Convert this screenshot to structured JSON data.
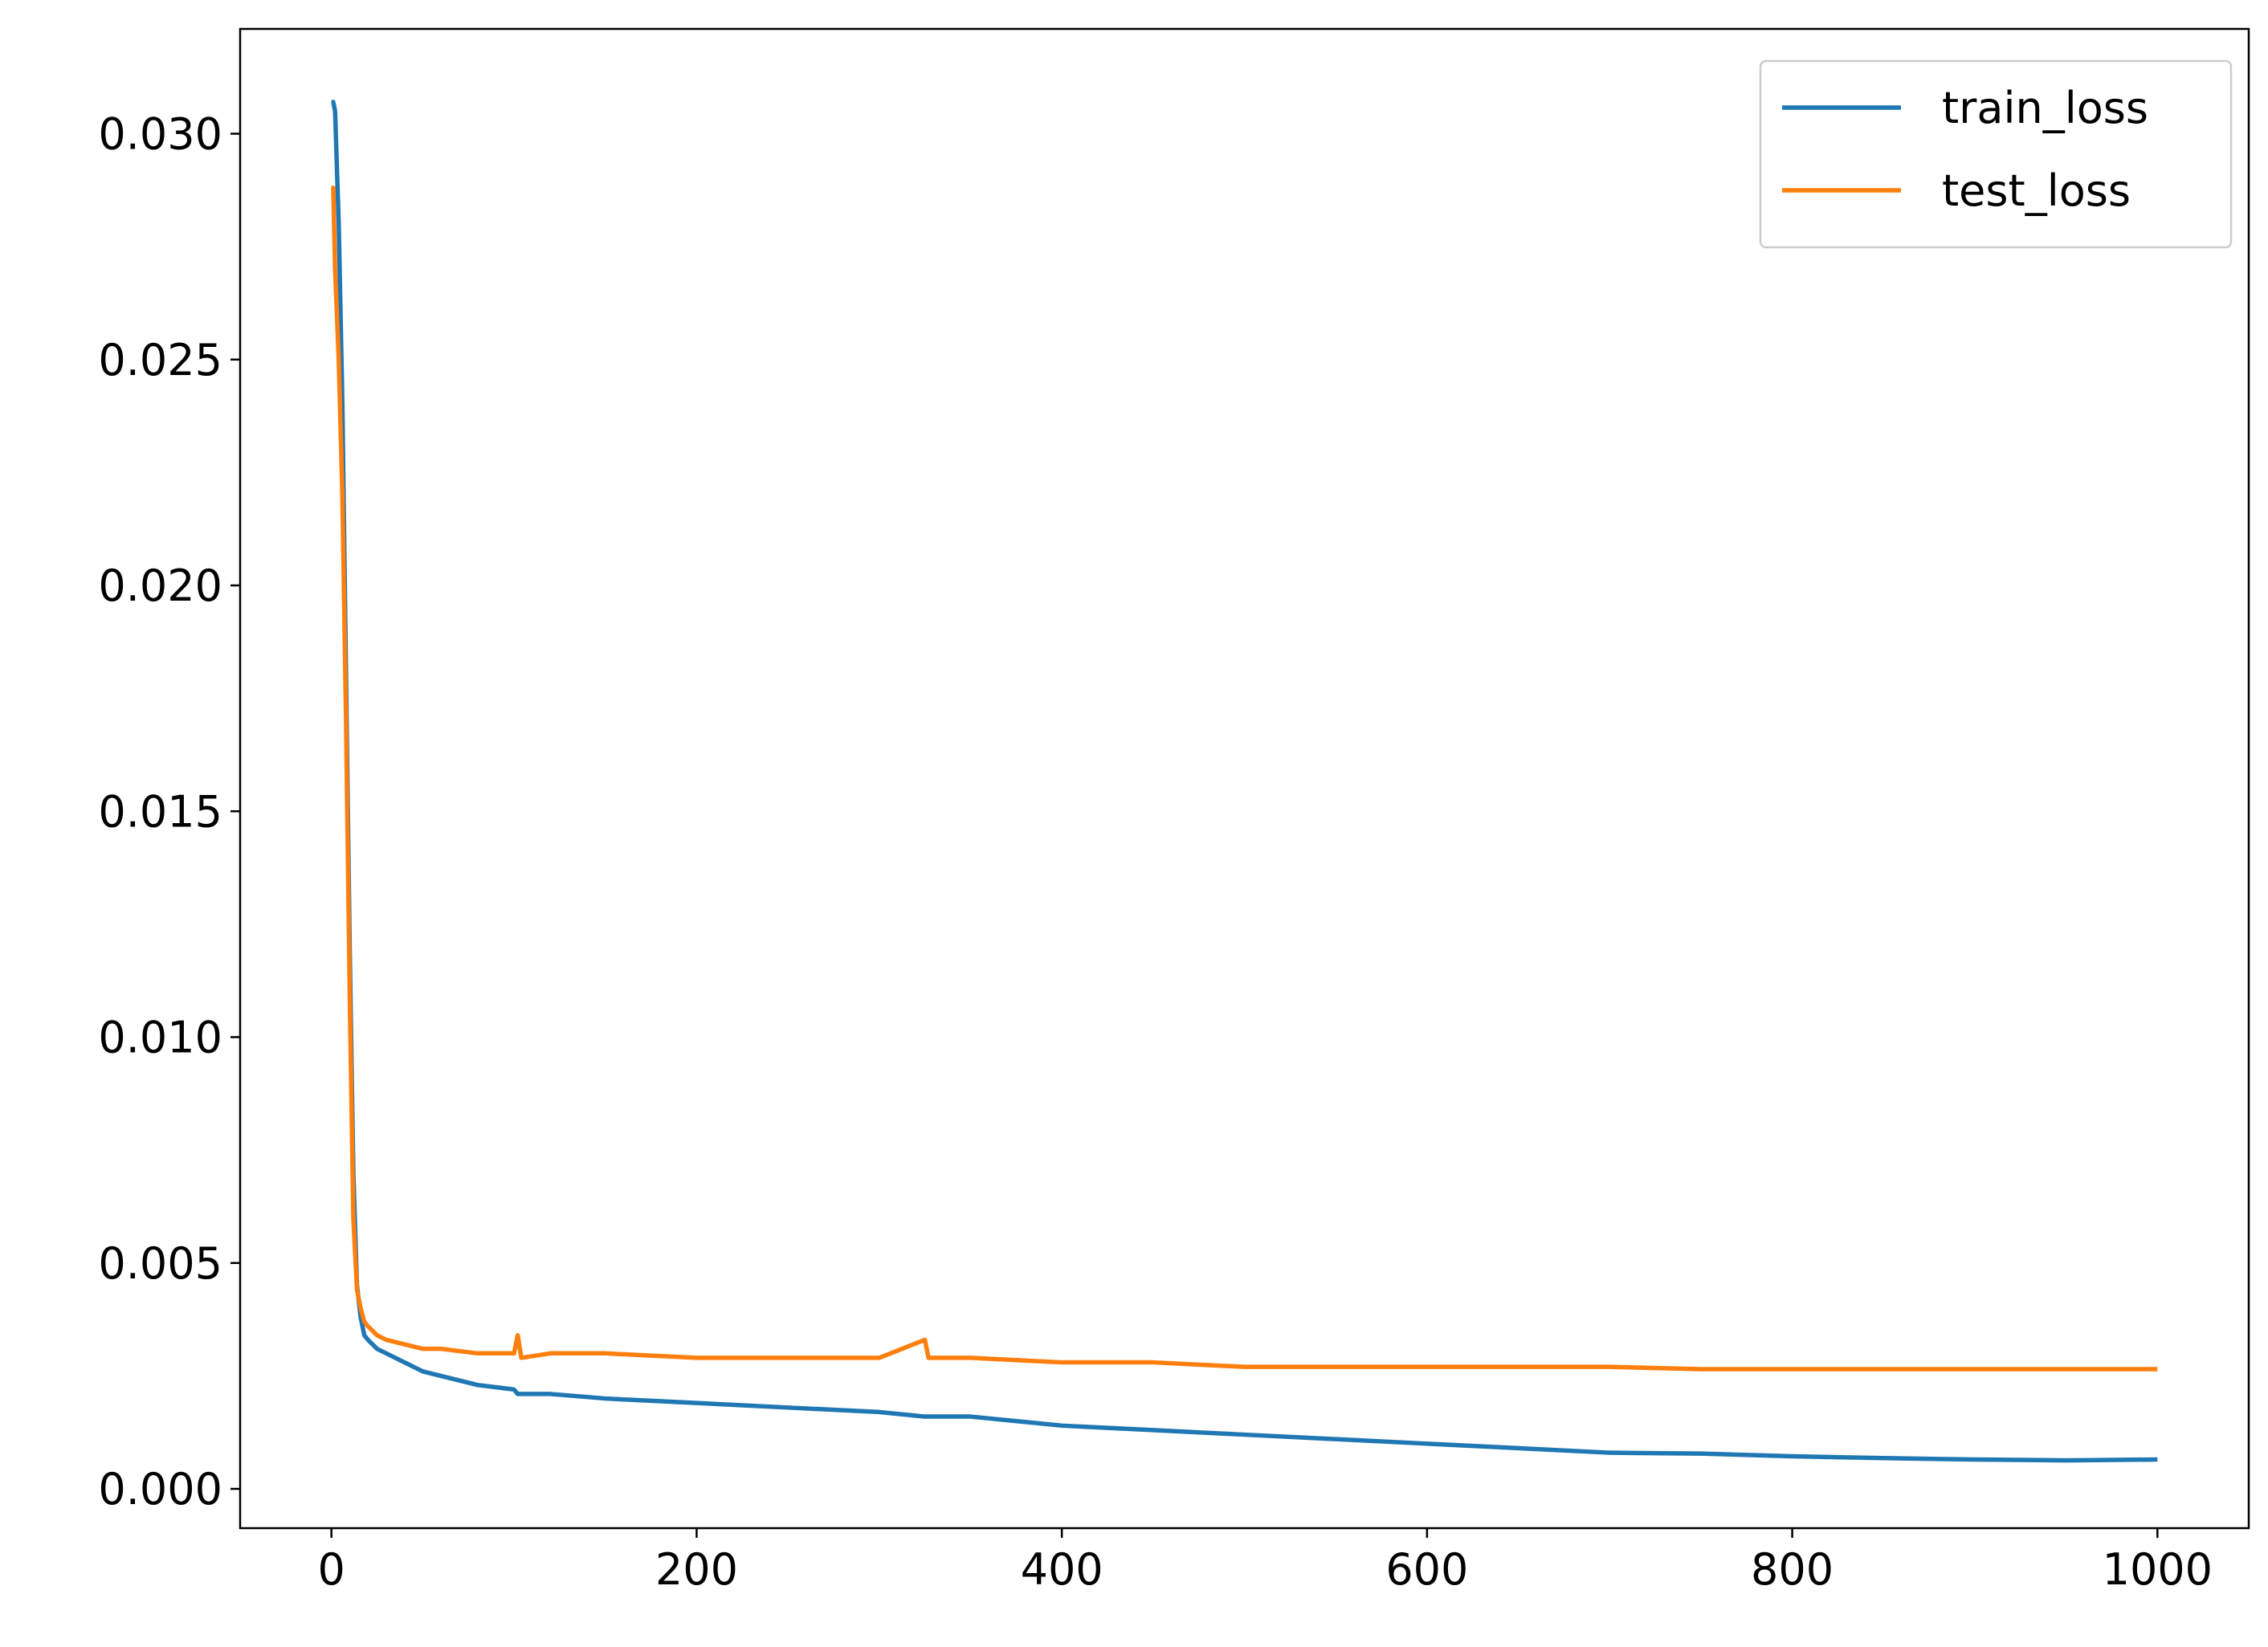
{
  "chart_data": {
    "type": "line",
    "x": [
      0,
      1,
      2,
      4,
      6,
      8,
      10,
      12,
      14,
      16,
      18,
      20,
      25,
      30,
      40,
      50,
      60,
      80,
      100,
      102,
      104,
      120,
      150,
      200,
      250,
      300,
      325,
      327,
      350,
      400,
      450,
      500,
      550,
      600,
      650,
      700,
      750,
      800,
      850,
      900,
      950,
      1000
    ],
    "series": [
      {
        "name": "train_loss",
        "color": "#1f77b4",
        "values": [
          0.0307,
          0.0307,
          0.0305,
          0.028,
          0.024,
          0.018,
          0.012,
          0.007,
          0.0045,
          0.0038,
          0.0034,
          0.0033,
          0.0031,
          0.003,
          0.0028,
          0.0026,
          0.0025,
          0.0023,
          0.0022,
          0.0021,
          0.0021,
          0.0021,
          0.002,
          0.0019,
          0.0018,
          0.0017,
          0.0016,
          0.0016,
          0.0016,
          0.0014,
          0.0013,
          0.0012,
          0.0011,
          0.001,
          0.0009,
          0.0008,
          0.00078,
          0.00072,
          0.00068,
          0.00065,
          0.00063,
          0.00065
        ]
      },
      {
        "name": "test_loss",
        "color": "#ff7f0e",
        "values": [
          0.0288,
          0.0288,
          0.027,
          0.025,
          0.022,
          0.017,
          0.011,
          0.006,
          0.0044,
          0.004,
          0.0037,
          0.0036,
          0.0034,
          0.0033,
          0.0032,
          0.0031,
          0.0031,
          0.003,
          0.003,
          0.0034,
          0.0029,
          0.003,
          0.003,
          0.0029,
          0.0029,
          0.0029,
          0.0033,
          0.0029,
          0.0029,
          0.0028,
          0.0028,
          0.0027,
          0.0027,
          0.0027,
          0.0027,
          0.0027,
          0.00265,
          0.00265,
          0.00265,
          0.00265,
          0.00265,
          0.00265
        ]
      }
    ],
    "xlim": [
      -50,
      1050
    ],
    "ylim": [
      -0.00087,
      0.03232
    ],
    "xticks": [
      0,
      200,
      400,
      600,
      800,
      1000
    ],
    "yticks": [
      {
        "value": 0,
        "label": "0.000"
      },
      0.005,
      {
        "value": 0.01,
        "label": "0.010"
      },
      0.015,
      {
        "value": 0.02,
        "label": "0.020"
      },
      0.025,
      {
        "value": 0.03,
        "label": "0.030"
      }
    ],
    "legend": "upper right",
    "grid": false
  }
}
